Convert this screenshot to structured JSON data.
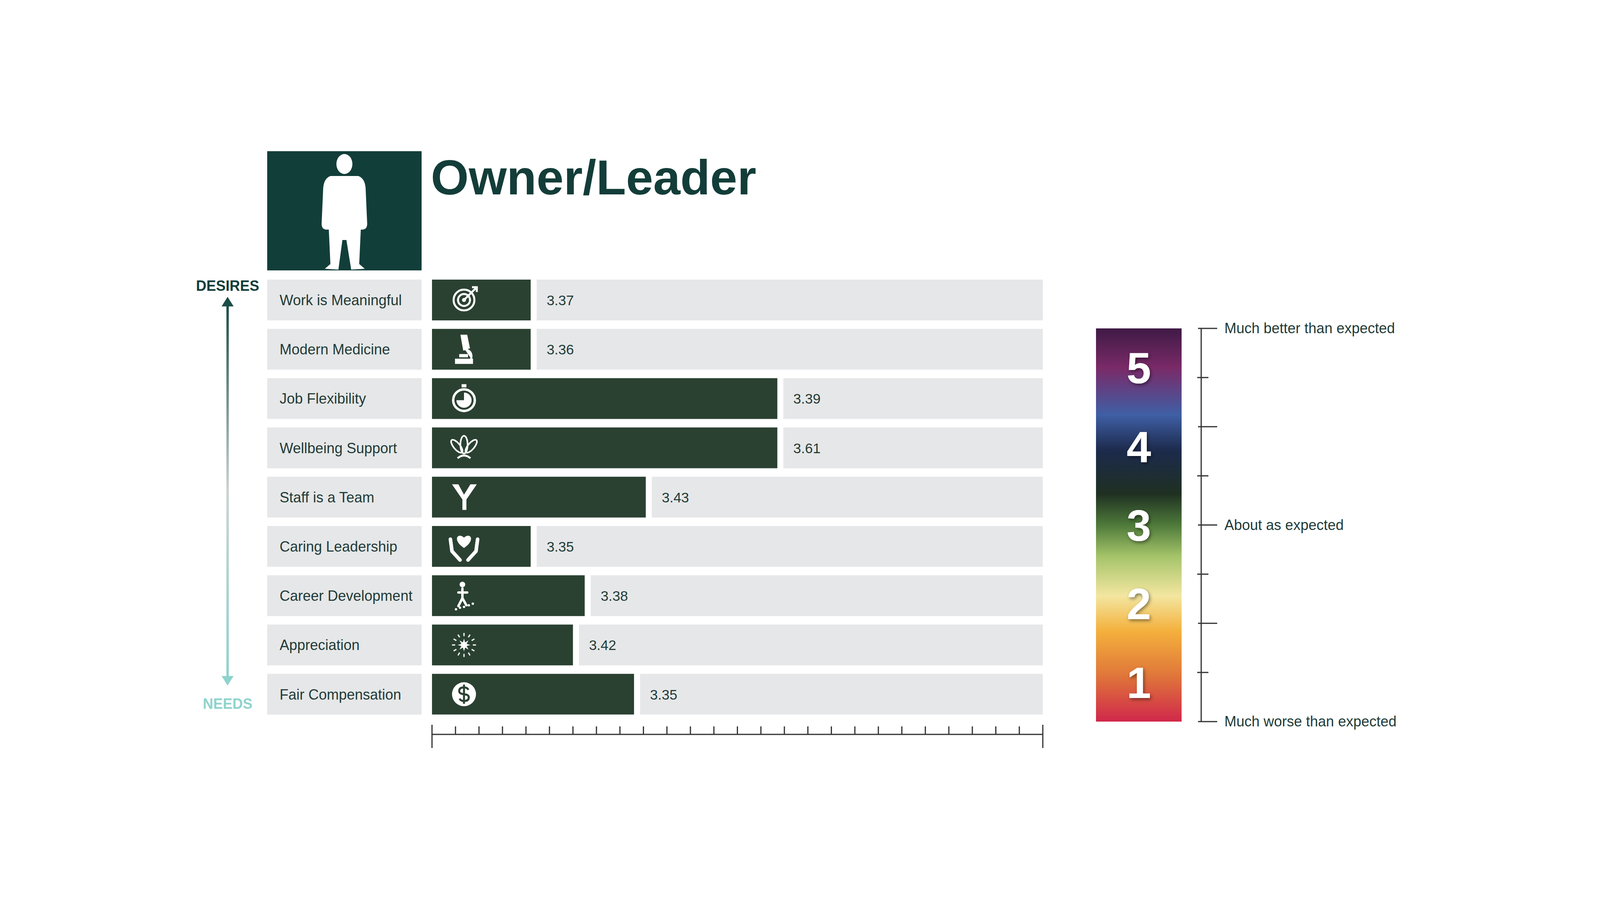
{
  "chart_data": {
    "type": "bar",
    "orientation": "horizontal",
    "title": "Owner/Leader",
    "categories": [
      "Work is Meaningful",
      "Modern Medicine",
      "Job Flexibility",
      "Wellbeing Support",
      "Staff is a Team",
      "Caring Leadership",
      "Career Development",
      "Appreciation",
      "Fair Compensation"
    ],
    "values": [
      4.2,
      4.2,
      14.7,
      14.7,
      9.1,
      4.2,
      6.5,
      6.0,
      8.6
    ],
    "scores": [
      3.37,
      3.36,
      3.39,
      3.61,
      3.43,
      3.35,
      3.38,
      3.42,
      3.35
    ],
    "color": "#2a4131",
    "xlim": [
      0,
      26
    ],
    "xticks": [
      0,
      1,
      2,
      3,
      4,
      5,
      6,
      7,
      8,
      9,
      10,
      11,
      12,
      13,
      14,
      15,
      16,
      17,
      18,
      19,
      20,
      21,
      22,
      23,
      24,
      25,
      26
    ],
    "tick_labels": false,
    "arrow_labels": {
      "top": "DESIRES",
      "bottom": "NEEDS"
    },
    "color_scale": {
      "range": [
        0.5,
        5.5
      ],
      "ticks": [
        1,
        2,
        3,
        4,
        5
      ],
      "labels": [
        {
          "value": 5.5,
          "label": "Much better than expected"
        },
        {
          "value": 3,
          "label": "About as expected"
        },
        {
          "value": 0.5,
          "label": "Much worse than expected"
        }
      ]
    }
  }
}
